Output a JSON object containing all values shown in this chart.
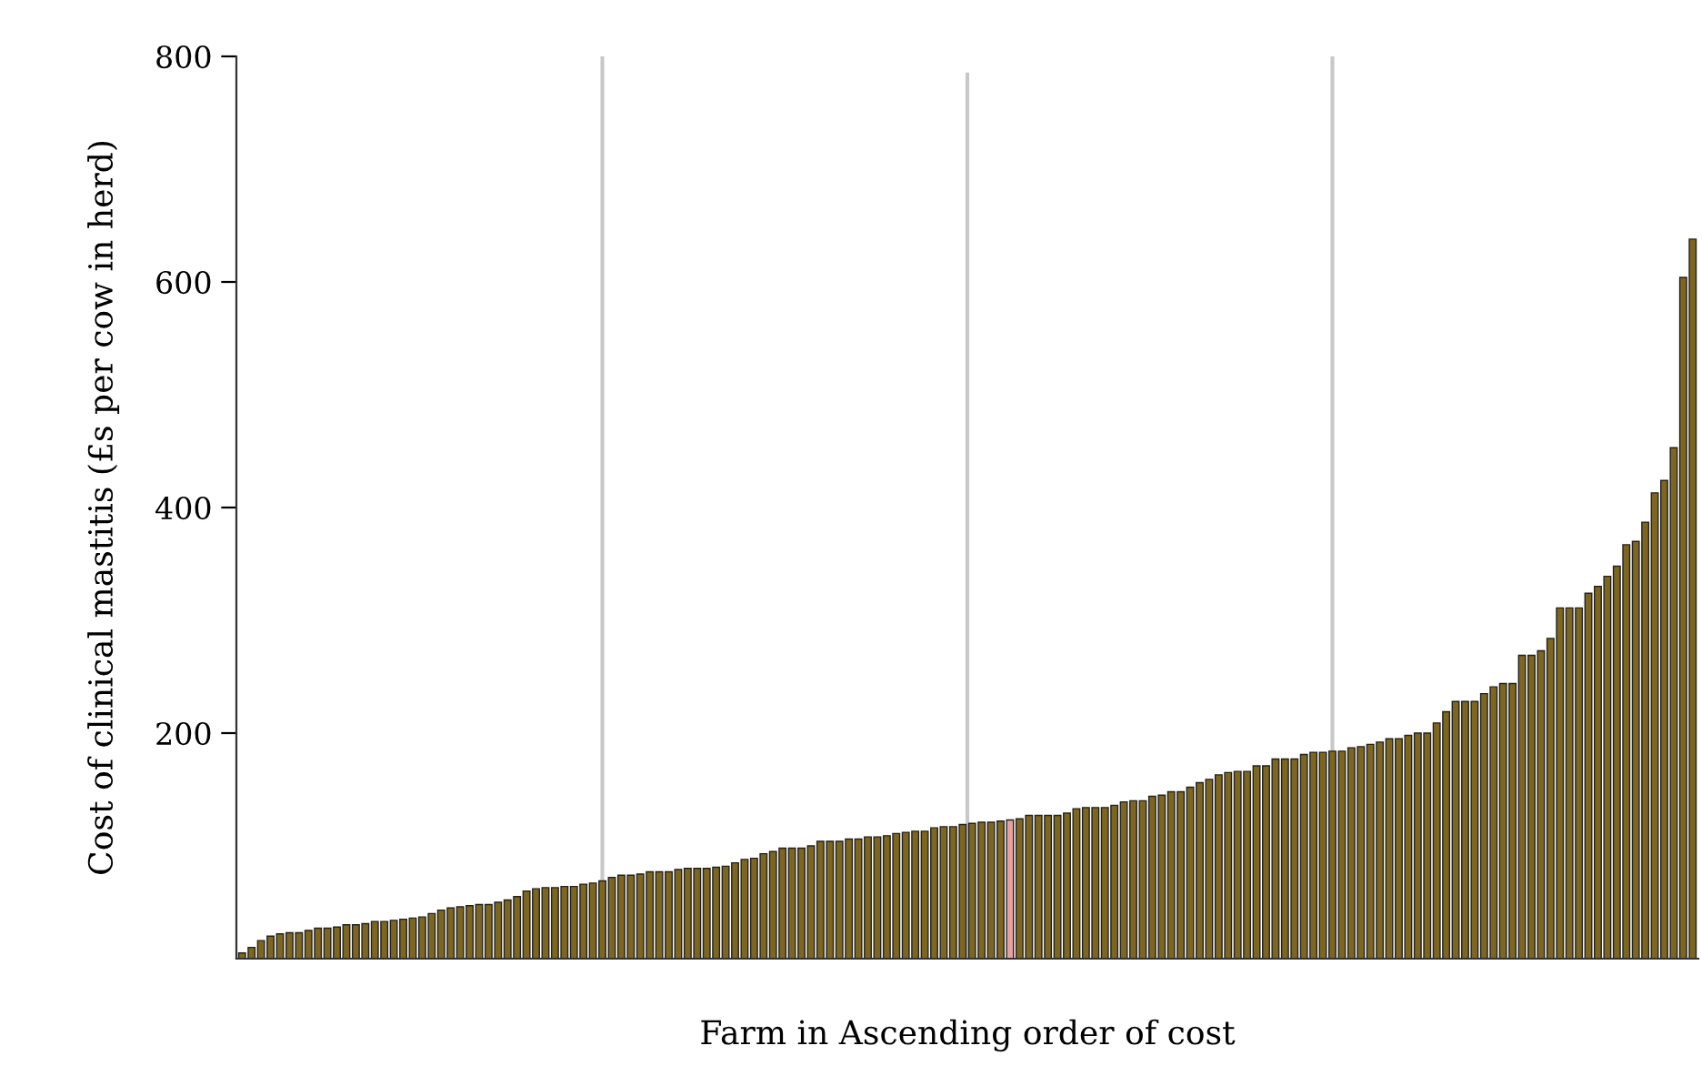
{
  "chart_data": {
    "type": "bar",
    "xlabel": "Farm in Ascending order of cost",
    "ylabel": "Cost of clinical mastitis (£s per cow in herd)",
    "categories": [
      null,
      null,
      null,
      null,
      null,
      null,
      null,
      null,
      null,
      null,
      null,
      null,
      null,
      null,
      null,
      null,
      null,
      null,
      null,
      null,
      null,
      null,
      null,
      null,
      null,
      null,
      null,
      null,
      null,
      null,
      null,
      null,
      null,
      null,
      null,
      null,
      null,
      null,
      null,
      null,
      null,
      null,
      null,
      null,
      null,
      null,
      null,
      null,
      null,
      null,
      null,
      null,
      null,
      null,
      null,
      null,
      null,
      null,
      null,
      null,
      null,
      null,
      null,
      null,
      null,
      null,
      null,
      null,
      null,
      null,
      null,
      null,
      null,
      null,
      null,
      null,
      null,
      null,
      null,
      null,
      null,
      null,
      null,
      null,
      null,
      null,
      null,
      null,
      null,
      null,
      null,
      null,
      null,
      null,
      null,
      null,
      null,
      null,
      null,
      null,
      null,
      null,
      null,
      null,
      null,
      null,
      null,
      null,
      null,
      null,
      null,
      null,
      null,
      null,
      null,
      null,
      null,
      null,
      null,
      null,
      null,
      null,
      null,
      null,
      null,
      null,
      null,
      null,
      null,
      null,
      null,
      null,
      null,
      null,
      null,
      null,
      null,
      null,
      null,
      null,
      null,
      null,
      null,
      null,
      null,
      null,
      null,
      null,
      null,
      null,
      null,
      null,
      null,
      null
    ],
    "values": [
      5,
      10,
      16,
      20,
      22,
      23,
      23,
      25,
      27,
      27,
      28,
      30,
      30,
      31,
      33,
      33,
      34,
      35,
      36,
      37,
      40,
      43,
      45,
      46,
      47,
      48,
      48,
      50,
      52,
      55,
      60,
      62,
      63,
      63,
      64,
      64,
      66,
      67,
      69,
      72,
      74,
      74,
      75,
      77,
      77,
      77,
      79,
      80,
      80,
      80,
      81,
      82,
      85,
      88,
      89,
      93,
      95,
      98,
      98,
      98,
      100,
      104,
      104,
      104,
      106,
      106,
      108,
      108,
      109,
      111,
      112,
      113,
      113,
      116,
      117,
      117,
      119,
      120,
      121,
      121,
      122,
      123,
      124,
      127,
      127,
      127,
      127,
      129,
      133,
      134,
      134,
      134,
      136,
      139,
      140,
      140,
      144,
      145,
      148,
      148,
      152,
      156,
      159,
      163,
      165,
      166,
      166,
      171,
      171,
      177,
      177,
      177,
      181,
      183,
      183,
      184,
      184,
      187,
      188,
      190,
      192,
      195,
      195,
      198,
      200,
      200,
      209,
      219,
      228,
      228,
      228,
      235,
      241,
      244,
      244,
      269,
      269,
      273,
      284,
      311,
      311,
      311,
      324,
      330,
      339,
      348,
      367,
      370,
      387,
      413,
      424,
      453,
      604,
      638
    ],
    "colors": [
      "#7d6620",
      "#7d6620",
      "#7d6620",
      "#7d6620",
      "#7d6620",
      "#7d6620",
      "#7d6620",
      "#7d6620",
      "#7d6620",
      "#7d6620",
      "#7d6620",
      "#7d6620",
      "#7d6620",
      "#7d6620",
      "#7d6620",
      "#7d6620",
      "#7d6620",
      "#7d6620",
      "#7d6620",
      "#7d6620",
      "#7d6620",
      "#7d6620",
      "#7d6620",
      "#7d6620",
      "#7d6620",
      "#7d6620",
      "#7d6620",
      "#7d6620",
      "#7d6620",
      "#7d6620",
      "#7d6620",
      "#7d6620",
      "#7d6620",
      "#7d6620",
      "#7d6620",
      "#7d6620",
      "#7d6620",
      "#7d6620",
      "#7d6620",
      "#7d6620",
      "#7d6620",
      "#7d6620",
      "#7d6620",
      "#7d6620",
      "#7d6620",
      "#7d6620",
      "#7d6620",
      "#7d6620",
      "#7d6620",
      "#7d6620",
      "#7d6620",
      "#7d6620",
      "#7d6620",
      "#7d6620",
      "#7d6620",
      "#7d6620",
      "#7d6620",
      "#7d6620",
      "#7d6620",
      "#7d6620",
      "#7d6620",
      "#7d6620",
      "#7d6620",
      "#7d6620",
      "#7d6620",
      "#7d6620",
      "#7d6620",
      "#7d6620",
      "#7d6620",
      "#7d6620",
      "#7d6620",
      "#7d6620",
      "#7d6620",
      "#7d6620",
      "#7d6620",
      "#7d6620",
      "#7d6620",
      "#7d6620",
      "#7d6620",
      "#7d6620",
      "#7d6620",
      "#e8a0a0",
      "#7d6620",
      "#7d6620",
      "#7d6620",
      "#7d6620",
      "#7d6620",
      "#7d6620",
      "#7d6620",
      "#7d6620",
      "#7d6620",
      "#7d6620",
      "#7d6620",
      "#7d6620",
      "#7d6620",
      "#7d6620",
      "#7d6620",
      "#7d6620",
      "#7d6620",
      "#7d6620",
      "#7d6620",
      "#7d6620",
      "#7d6620",
      "#7d6620",
      "#7d6620",
      "#7d6620",
      "#7d6620",
      "#7d6620",
      "#7d6620",
      "#7d6620",
      "#7d6620",
      "#7d6620",
      "#7d6620",
      "#7d6620",
      "#7d6620",
      "#7d6620",
      "#7d6620",
      "#7d6620",
      "#7d6620",
      "#7d6620",
      "#7d6620",
      "#7d6620",
      "#7d6620",
      "#7d6620",
      "#7d6620",
      "#7d6620",
      "#7d6620",
      "#7d6620",
      "#7d6620",
      "#7d6620",
      "#7d6620",
      "#7d6620",
      "#7d6620",
      "#7d6620",
      "#7d6620",
      "#7d6620",
      "#7d6620",
      "#7d6620",
      "#7d6620",
      "#7d6620",
      "#7d6620",
      "#7d6620",
      "#7d6620",
      "#7d6620",
      "#7d6620",
      "#7d6620",
      "#7d6620",
      "#7d6620",
      "#7d6620",
      "#7d6620",
      "#7d6620",
      "#7d6620",
      "#7d6620",
      "#7d6620"
    ],
    "ylim": [
      0,
      800
    ],
    "yticks": [
      200,
      400,
      600,
      800
    ],
    "tick_labels": "y",
    "grid": false,
    "legend": false
  }
}
